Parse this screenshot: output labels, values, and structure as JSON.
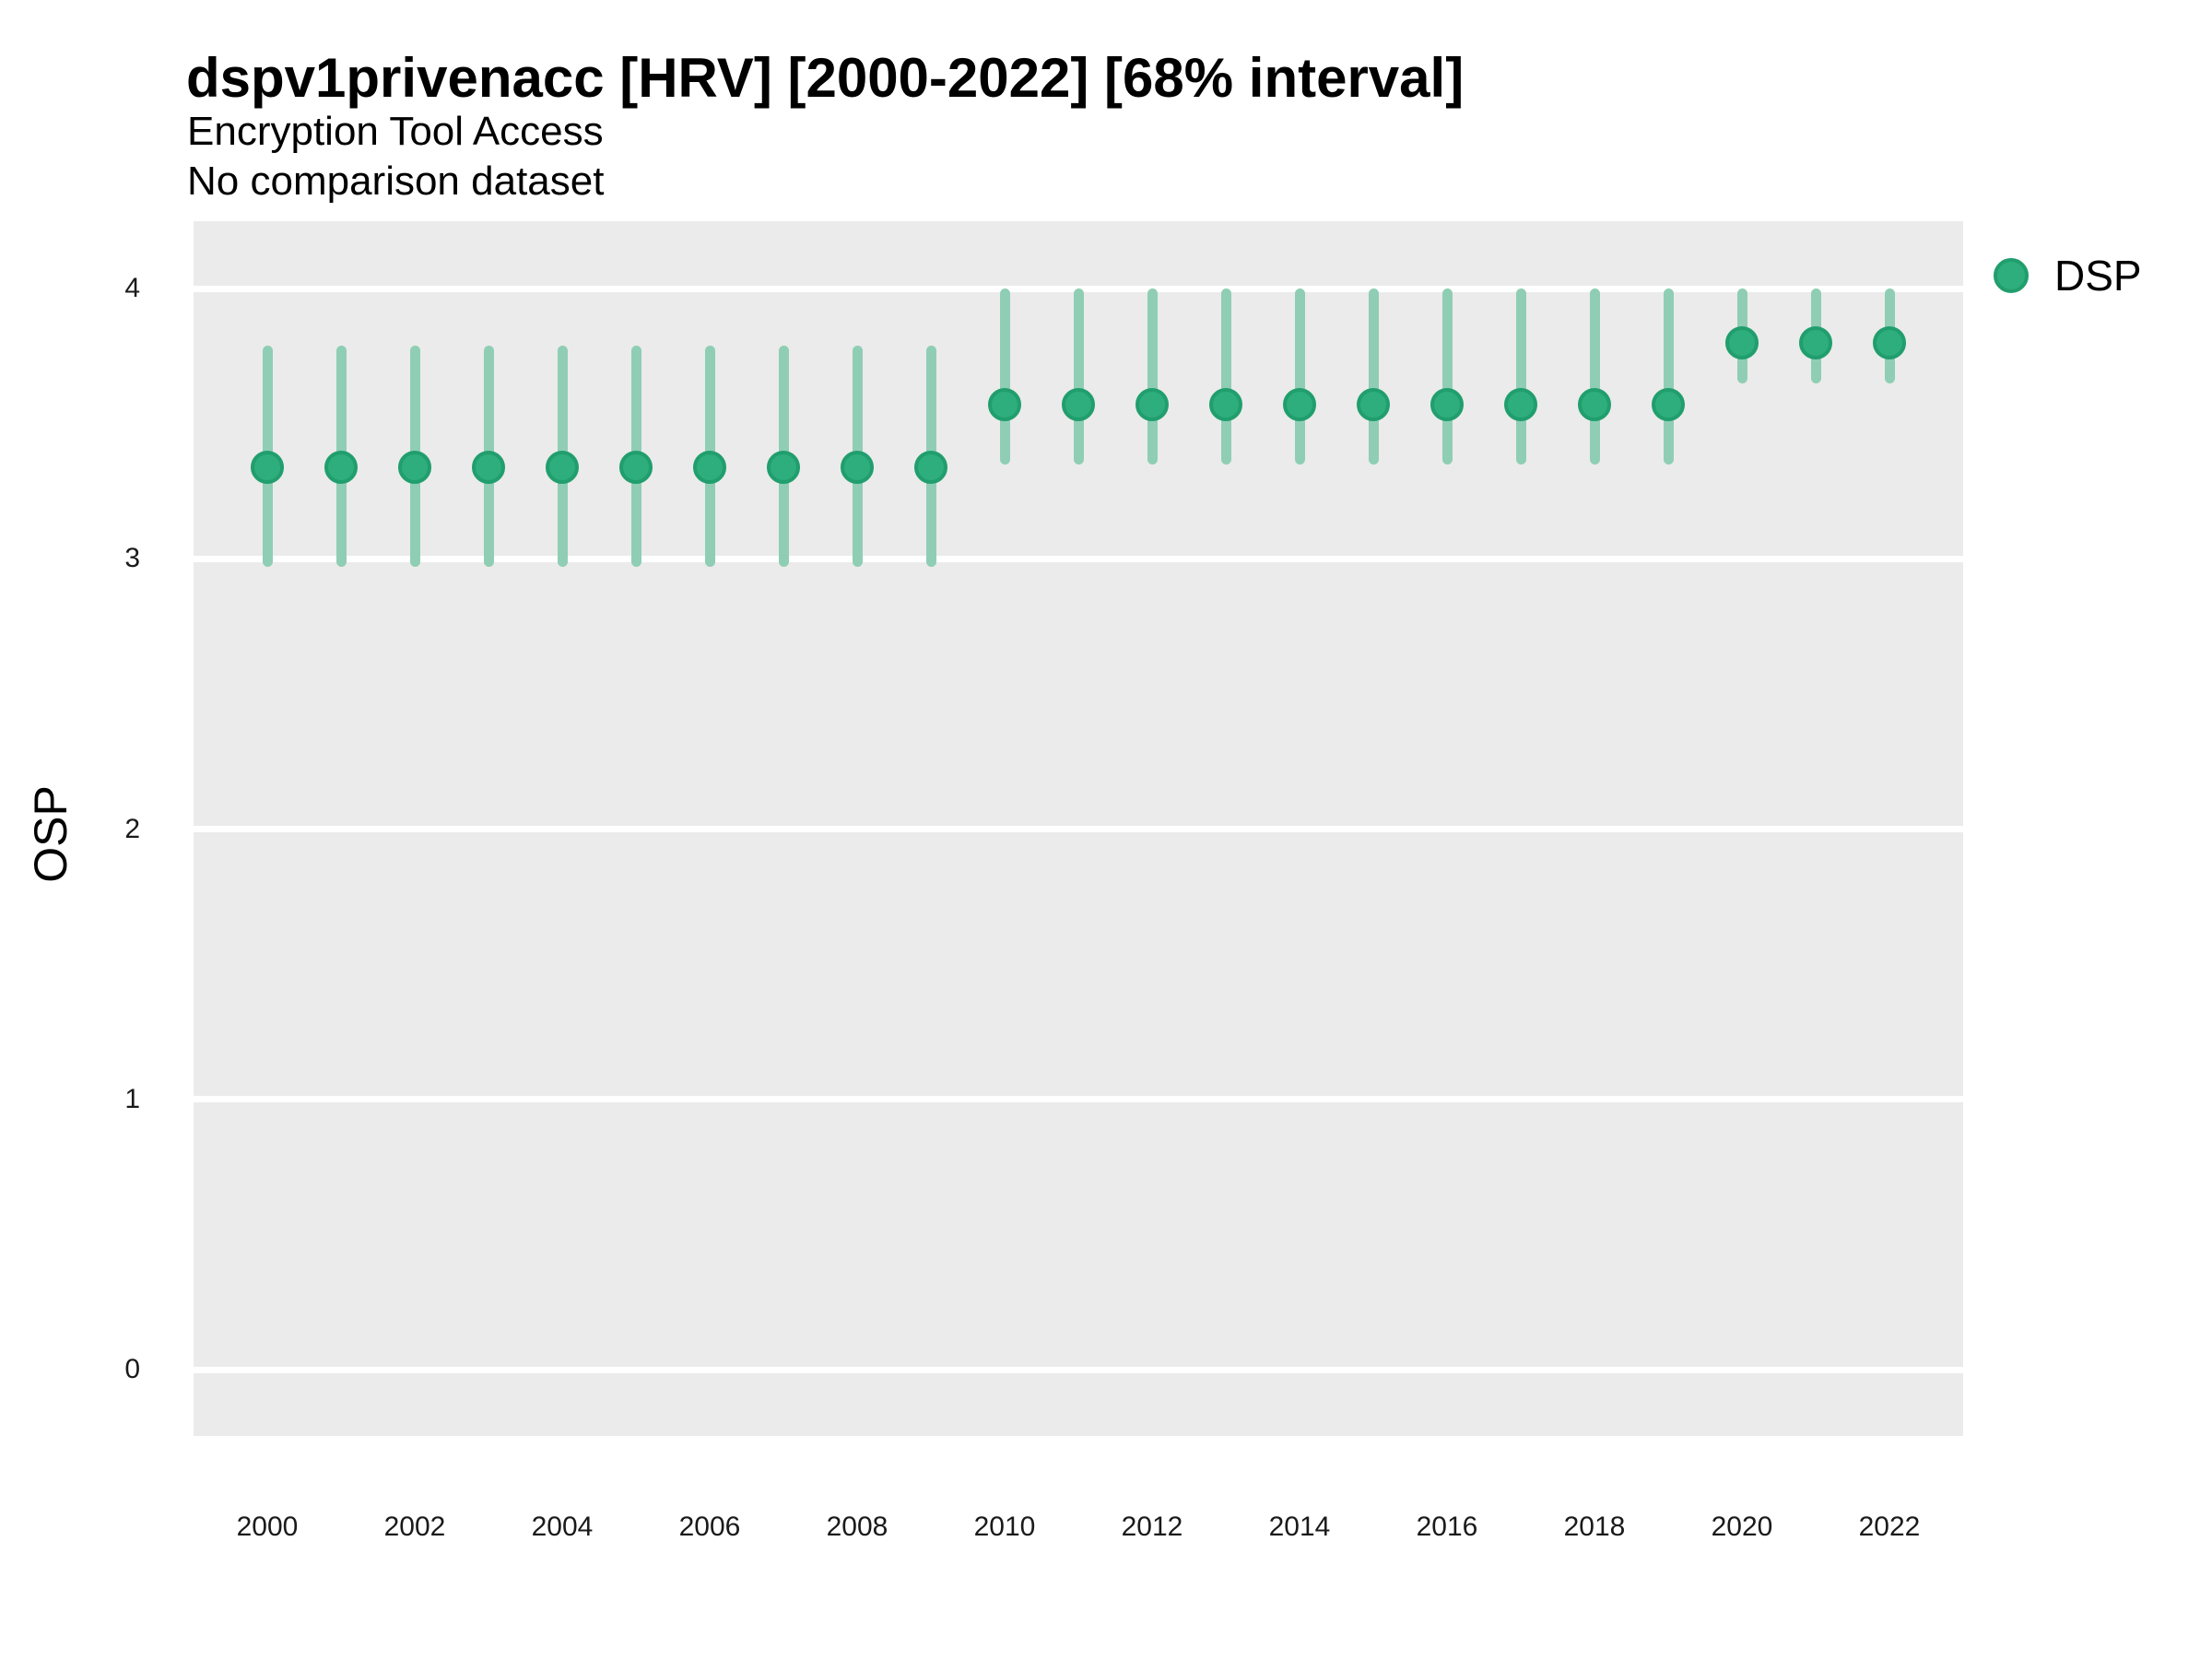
{
  "header": {
    "title": "dspv1privenacc [HRV] [2000-2022] [68% interval]",
    "subtitle_line1": "Encryption Tool Access",
    "subtitle_line2": "No comparison dataset"
  },
  "legend": {
    "label": "DSP"
  },
  "axes": {
    "y_label": "OSP",
    "y_ticks": [
      4,
      3,
      2,
      1,
      0
    ],
    "x_ticks": [
      2000,
      2002,
      2004,
      2006,
      2008,
      2010,
      2012,
      2014,
      2016,
      2018,
      2020,
      2022
    ]
  },
  "colors": {
    "point": "#2EAD7D",
    "point_stroke": "#219E6D",
    "interval": "#8FCEB5",
    "panel_bg": "#EBEBEB",
    "gridline": "#FFFFFF",
    "text": "#000000"
  },
  "chart_data": {
    "type": "pointrange",
    "title": "dspv1privenacc [HRV] [2000-2022] [68% interval]",
    "subtitle": "Encryption Tool Access / No comparison dataset",
    "interval": "68%",
    "xlabel": "",
    "ylabel": "OSP",
    "ylim": [
      0,
      4
    ],
    "grid": "major horizontal white on gray panel",
    "legend_position": "right",
    "x": [
      2000,
      2001,
      2002,
      2003,
      2004,
      2005,
      2006,
      2007,
      2008,
      2009,
      2010,
      2011,
      2012,
      2013,
      2014,
      2015,
      2016,
      2017,
      2018,
      2019,
      2020,
      2021,
      2022
    ],
    "series": [
      {
        "name": "DSP",
        "values": [
          3.34,
          3.34,
          3.34,
          3.34,
          3.34,
          3.34,
          3.34,
          3.34,
          3.34,
          3.34,
          3.57,
          3.57,
          3.57,
          3.57,
          3.57,
          3.57,
          3.57,
          3.57,
          3.57,
          3.57,
          3.8,
          3.8,
          3.8
        ],
        "ci_low": [
          2.97,
          2.97,
          2.97,
          2.97,
          2.97,
          2.97,
          2.97,
          2.97,
          2.97,
          2.97,
          3.35,
          3.35,
          3.35,
          3.35,
          3.35,
          3.35,
          3.35,
          3.35,
          3.35,
          3.35,
          3.65,
          3.65,
          3.65
        ],
        "ci_high": [
          3.79,
          3.79,
          3.79,
          3.79,
          3.79,
          3.79,
          3.79,
          3.79,
          3.79,
          3.79,
          4.0,
          4.0,
          4.0,
          4.0,
          4.0,
          4.0,
          4.0,
          4.0,
          4.0,
          4.0,
          4.0,
          4.0,
          4.0
        ]
      }
    ]
  }
}
